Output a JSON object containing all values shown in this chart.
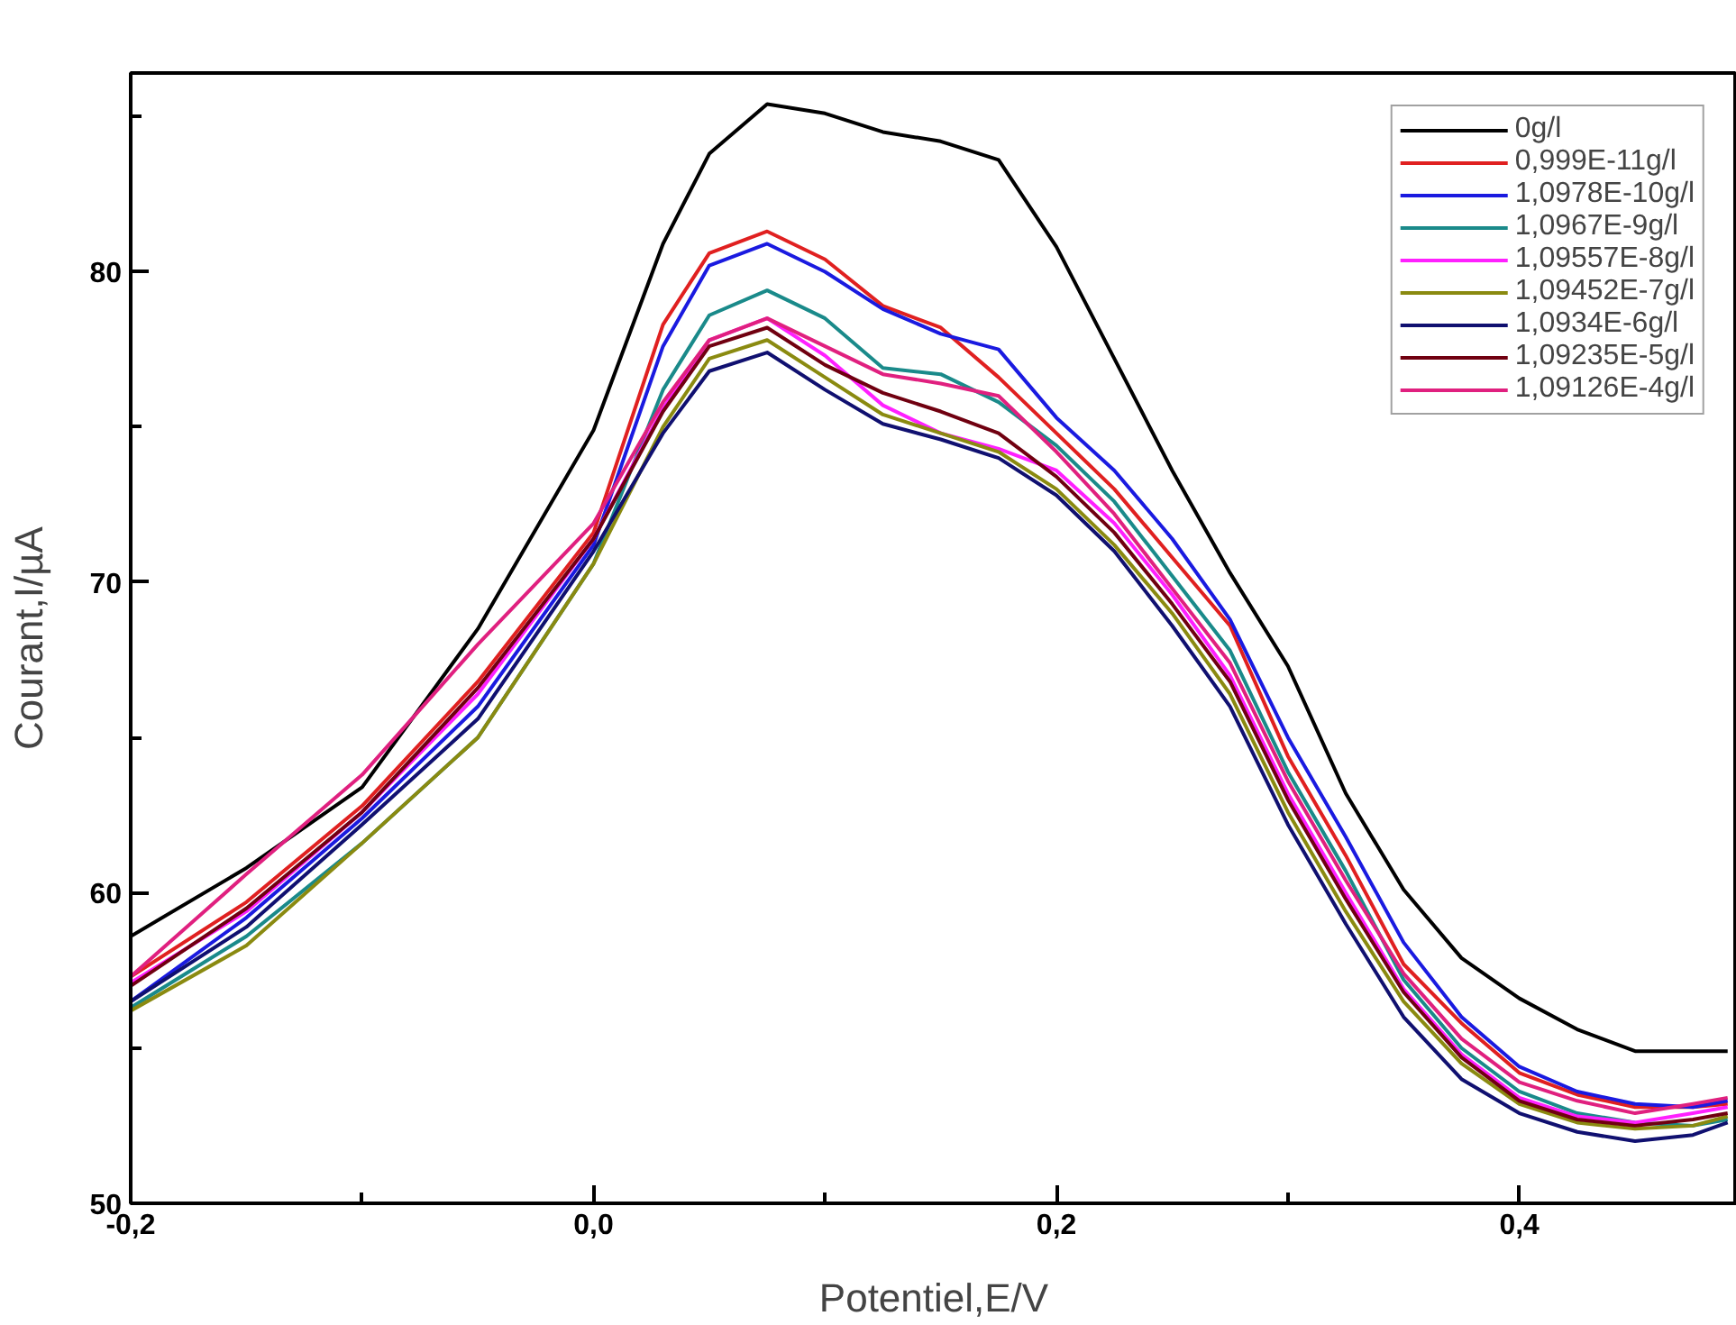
{
  "chart_data": {
    "type": "line",
    "xlabel": "Potentiel,E/V",
    "ylabel": "Courant,I/µA",
    "x": [
      -0.2,
      -0.15,
      -0.1,
      -0.05,
      0,
      0.03,
      0.05,
      0.075,
      0.1,
      0.125,
      0.15,
      0.175,
      0.2,
      0.225,
      0.25,
      0.275,
      0.3,
      0.325,
      0.35,
      0.375,
      0.4,
      0.425,
      0.45,
      0.475,
      0.49
    ],
    "series": [
      {
        "name": "0g/l",
        "color": "#000000",
        "values": [
          58.6,
          60.8,
          63.4,
          68.5,
          74.9,
          80.9,
          83.8,
          85.4,
          85.1,
          84.5,
          84.2,
          83.6,
          80.8,
          77.2,
          73.6,
          70.3,
          67.3,
          63.2,
          60.1,
          57.9,
          56.6,
          55.6,
          54.9,
          54.9,
          54.9
        ]
      },
      {
        "name": "0,999E-11g/l",
        "color": "#e02020",
        "values": [
          57.3,
          59.7,
          62.8,
          66.8,
          71.6,
          78.3,
          80.6,
          81.3,
          80.4,
          78.9,
          78.2,
          76.6,
          74.8,
          73.0,
          70.8,
          68.6,
          64.4,
          61.2,
          57.7,
          55.8,
          54.2,
          53.5,
          53.1,
          53.1,
          53.2
        ]
      },
      {
        "name": "1,0978E-10g/l",
        "color": "#1a1ae0",
        "values": [
          56.5,
          59.2,
          62.4,
          66.0,
          71.2,
          77.6,
          80.2,
          80.9,
          80.0,
          78.8,
          78.0,
          77.5,
          75.3,
          73.6,
          71.4,
          68.8,
          65.0,
          61.8,
          58.4,
          56.0,
          54.4,
          53.6,
          53.2,
          53.1,
          53.3
        ]
      },
      {
        "name": "1,0967E-9g/l",
        "color": "#1a8a8a",
        "values": [
          56.3,
          58.6,
          61.6,
          65.0,
          70.6,
          76.2,
          78.6,
          79.4,
          78.5,
          76.9,
          76.7,
          75.8,
          74.4,
          72.6,
          70.2,
          67.8,
          63.9,
          60.7,
          57.2,
          55.0,
          53.6,
          52.9,
          52.6,
          52.5,
          52.7
        ]
      },
      {
        "name": "1,09557E-8g/l",
        "color": "#ff20ff",
        "values": [
          57.1,
          59.4,
          62.6,
          66.4,
          71.4,
          75.6,
          77.8,
          78.5,
          77.3,
          75.7,
          74.8,
          74.3,
          73.6,
          71.9,
          69.6,
          67.0,
          63.2,
          60.0,
          56.9,
          54.8,
          53.4,
          52.8,
          52.6,
          52.9,
          53.1
        ]
      },
      {
        "name": "1,09452E-7g/l",
        "color": "#8a8a10",
        "values": [
          56.2,
          58.3,
          61.6,
          65.0,
          70.6,
          75.0,
          77.2,
          77.8,
          76.6,
          75.4,
          74.8,
          74.2,
          73.0,
          71.2,
          69.0,
          66.4,
          62.6,
          59.4,
          56.5,
          54.5,
          53.2,
          52.6,
          52.4,
          52.5,
          52.8
        ]
      },
      {
        "name": "1,0934E-6g/l",
        "color": "#101070",
        "values": [
          56.5,
          58.9,
          62.2,
          65.6,
          71.0,
          74.8,
          76.8,
          77.4,
          76.2,
          75.1,
          74.6,
          74.0,
          72.8,
          71.0,
          68.6,
          66.0,
          62.2,
          59.0,
          56.0,
          54.0,
          52.9,
          52.3,
          52.0,
          52.2,
          52.6
        ]
      },
      {
        "name": "1,09235E-5g/l",
        "color": "#700010",
        "values": [
          57.0,
          59.5,
          62.6,
          66.6,
          71.4,
          75.5,
          77.6,
          78.2,
          77.0,
          76.1,
          75.5,
          74.8,
          73.4,
          71.6,
          69.3,
          66.8,
          63.0,
          59.8,
          56.8,
          54.7,
          53.3,
          52.7,
          52.5,
          52.7,
          52.9
        ]
      },
      {
        "name": "1,09126E-4g/l",
        "color": "#e0207f",
        "values": [
          57.3,
          60.6,
          63.8,
          68.0,
          71.9,
          75.8,
          77.8,
          78.5,
          77.6,
          76.7,
          76.4,
          76.0,
          74.2,
          72.2,
          69.8,
          67.4,
          63.6,
          60.4,
          57.4,
          55.3,
          53.9,
          53.3,
          52.9,
          53.2,
          53.4
        ]
      }
    ],
    "xlim": [
      -0.2,
      0.494
    ],
    "ylim": [
      50,
      86.4
    ],
    "xticks": [
      {
        "value": -0.2,
        "label": "-0,2"
      },
      {
        "value": -0.1,
        "label": null
      },
      {
        "value": 0,
        "label": "0,0"
      },
      {
        "value": 0.1,
        "label": null
      },
      {
        "value": 0.2,
        "label": "0,2"
      },
      {
        "value": 0.3,
        "label": null
      },
      {
        "value": 0.4,
        "label": "0,4"
      }
    ],
    "yticks": [
      50,
      {
        "value": 55,
        "label": null
      },
      60,
      {
        "value": 65,
        "label": null
      },
      70,
      {
        "value": 75,
        "label": null
      },
      80,
      {
        "value": 85,
        "label": null
      }
    ],
    "grid": false,
    "legend": "top right",
    "marker": "none",
    "line_style": "solid"
  }
}
